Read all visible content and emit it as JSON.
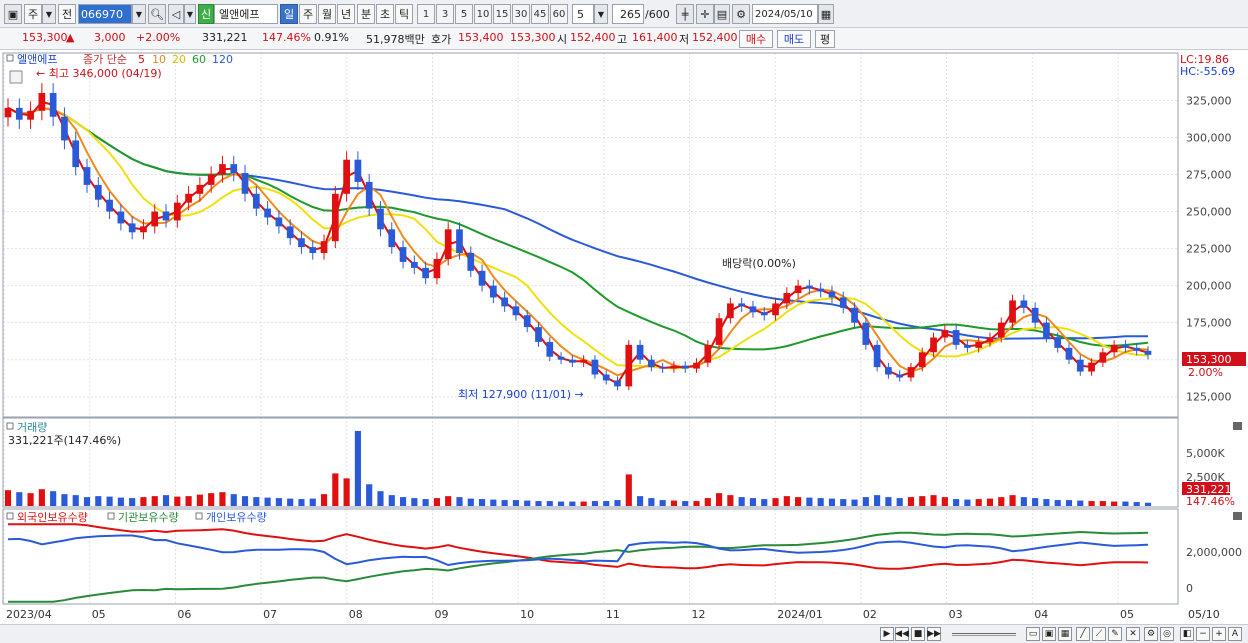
{
  "toolbar": {
    "market": "주",
    "prev": "전",
    "code": "066970",
    "sin": "신",
    "name": "엘앤에프",
    "periods": [
      "일",
      "주",
      "월",
      "년",
      "분",
      "초",
      "틱"
    ],
    "intervals": [
      "1",
      "3",
      "5",
      "10",
      "15",
      "30",
      "45",
      "60"
    ],
    "interval_value": "5",
    "count": "265",
    "count_total": "/600",
    "date": "2024/05/10"
  },
  "quote": {
    "price": "153,300",
    "change": "3,000",
    "change_pct": "+2.00%",
    "volume": "331,221",
    "vol_ratio": "147.46%",
    "turnover": "0.91%",
    "amount": "51,978백만",
    "hoga_label": "호가",
    "ask": "153,400",
    "bid": "153,300",
    "open_label": "시",
    "open": "152,400",
    "high_label": "고",
    "high": "161,400",
    "low_label": "저",
    "low": "152,400",
    "buy": "매수",
    "sell": "매도",
    "pyeong": "평"
  },
  "chart_data": {
    "type": "candlestick",
    "price_panel": {
      "stock_label": "엘앤에프",
      "ma_label": "종가 단순",
      "ma_periods": [
        "5",
        "10",
        "20",
        "60",
        "120"
      ],
      "ma_colors": [
        "#e01010",
        "#f08a1c",
        "#f0e010",
        "#1f9a2a",
        "#2a5ad8"
      ],
      "lc": "LC:19.86",
      "hc": "HC:-55.69",
      "max_label": "최고 346,000 (04/19)",
      "min_label": "최저 127,900 (11/01)",
      "dividend_label": "배당락(0.00%)",
      "last_price": "153,300",
      "last_pct": "2.00%",
      "y_ticks": [
        "325,000",
        "300,000",
        "275,000",
        "250,000",
        "225,000",
        "200,000",
        "175,000",
        "150,000",
        "125,000"
      ],
      "y_values": [
        325000,
        300000,
        275000,
        250000,
        225000,
        200000,
        175000,
        150000,
        125000
      ],
      "ylim": [
        112000,
        355000
      ]
    },
    "volume_panel": {
      "title": "거래량",
      "value": "331,221주(147.46%)",
      "y_ticks": [
        "5,000K",
        "2,500K"
      ],
      "last": "331,221",
      "last_pct": "147.46%"
    },
    "holding_panel": {
      "series": [
        {
          "name": "외국인보유수량",
          "color": "#e01010"
        },
        {
          "name": "기관보유수량",
          "color": "#2a8a3a"
        },
        {
          "name": "개인보유수량",
          "color": "#2a5ad8"
        }
      ],
      "y_ticks": [
        "2,000,000",
        "0"
      ]
    },
    "x_ticks": [
      "2023/04",
      "05",
      "06",
      "07",
      "08",
      "09",
      "10",
      "11",
      "12",
      "2024/01",
      "02",
      "03",
      "04",
      "05",
      "05/10"
    ],
    "close": [
      320000,
      312000,
      318000,
      330000,
      314000,
      298000,
      280000,
      268000,
      258000,
      250000,
      242000,
      236000,
      240000,
      250000,
      244000,
      256000,
      262000,
      268000,
      275000,
      282000,
      276000,
      262000,
      252000,
      246000,
      240000,
      232000,
      226000,
      222000,
      230000,
      262000,
      285000,
      270000,
      252000,
      238000,
      226000,
      216000,
      212000,
      205000,
      218000,
      238000,
      222000,
      210000,
      200000,
      192000,
      186000,
      180000,
      172000,
      162000,
      152000,
      150000,
      148000,
      150000,
      140000,
      136000,
      132000,
      160000,
      150000,
      145000,
      144000,
      146000,
      144000,
      148000,
      160000,
      178000,
      188000,
      186000,
      182000,
      180000,
      188000,
      195000,
      200000,
      198000,
      196000,
      192000,
      185000,
      175000,
      160000,
      145000,
      140000,
      138000,
      145000,
      155000,
      165000,
      170000,
      160000,
      158000,
      162000,
      165000,
      175000,
      190000,
      185000,
      175000,
      165000,
      158000,
      150000,
      142000,
      148000,
      155000,
      160000,
      158000,
      156000,
      153300
    ],
    "volume_k": [
      1600,
      1400,
      1300,
      1700,
      1500,
      1200,
      1100,
      900,
      1000,
      950,
      850,
      800,
      900,
      1000,
      1100,
      950,
      1000,
      1150,
      1300,
      1400,
      1200,
      1000,
      900,
      850,
      800,
      750,
      700,
      750,
      1200,
      3300,
      2800,
      7600,
      2200,
      1500,
      1100,
      900,
      800,
      700,
      800,
      1000,
      900,
      750,
      700,
      650,
      600,
      600,
      550,
      500,
      500,
      450,
      450,
      450,
      500,
      500,
      600,
      3200,
      1000,
      800,
      600,
      550,
      500,
      500,
      800,
      1300,
      1100,
      900,
      800,
      700,
      800,
      1000,
      900,
      850,
      800,
      750,
      700,
      650,
      900,
      1100,
      900,
      800,
      900,
      1000,
      1100,
      900,
      700,
      650,
      700,
      750,
      900,
      1100,
      900,
      800,
      700,
      600,
      600,
      550,
      500,
      500,
      450,
      450,
      400,
      331
    ]
  }
}
